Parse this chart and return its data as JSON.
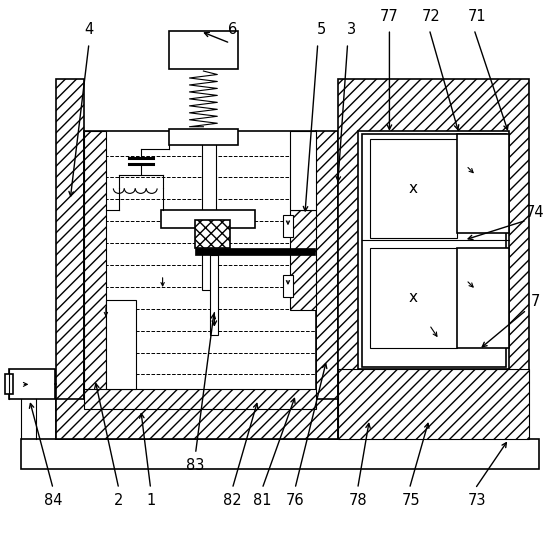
{
  "bg_color": "#ffffff",
  "line_color": "#000000",
  "lw": 1.2,
  "lw_thin": 0.8
}
